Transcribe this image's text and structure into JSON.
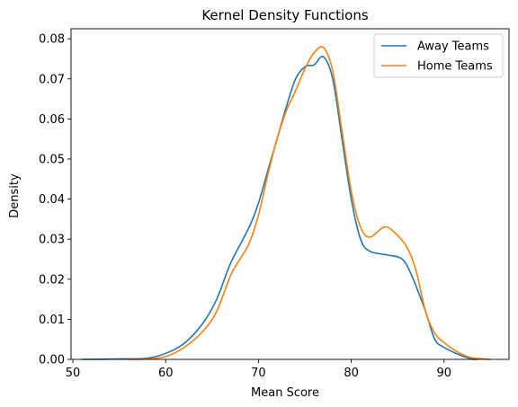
{
  "chart_data": {
    "type": "line",
    "title": "Kernel Density Functions",
    "xlabel": "Mean Score",
    "ylabel": "Density",
    "xlim": [
      49.8,
      97.0
    ],
    "ylim": [
      0,
      0.0825
    ],
    "xticks": [
      {
        "value": 50,
        "label": "50"
      },
      {
        "value": 60,
        "label": "60"
      },
      {
        "value": 70,
        "label": "70"
      },
      {
        "value": 80,
        "label": "80"
      },
      {
        "value": 90,
        "label": "90"
      }
    ],
    "yticks": [
      {
        "value": 0.0,
        "label": "0.00"
      },
      {
        "value": 0.01,
        "label": "0.01"
      },
      {
        "value": 0.02,
        "label": "0.02"
      },
      {
        "value": 0.03,
        "label": "0.03"
      },
      {
        "value": 0.04,
        "label": "0.04"
      },
      {
        "value": 0.05,
        "label": "0.05"
      },
      {
        "value": 0.06,
        "label": "0.06"
      },
      {
        "value": 0.07,
        "label": "0.07"
      },
      {
        "value": 0.08,
        "label": "0.08"
      }
    ],
    "grid": false,
    "legend_position": "top-right",
    "series": [
      {
        "name": "Away Teams",
        "color": "#1f77b4",
        "points": [
          [
            51.0,
            0.0
          ],
          [
            55.0,
            0.0001
          ],
          [
            58.0,
            0.0003
          ],
          [
            60.0,
            0.0015
          ],
          [
            62.0,
            0.004
          ],
          [
            64.0,
            0.009
          ],
          [
            65.5,
            0.015
          ],
          [
            67.0,
            0.024
          ],
          [
            69.0,
            0.033
          ],
          [
            70.0,
            0.039
          ],
          [
            71.0,
            0.047
          ],
          [
            72.0,
            0.055
          ],
          [
            73.0,
            0.063
          ],
          [
            74.0,
            0.07
          ],
          [
            75.0,
            0.073
          ],
          [
            76.0,
            0.0735
          ],
          [
            77.0,
            0.0755
          ],
          [
            78.0,
            0.07
          ],
          [
            79.0,
            0.055
          ],
          [
            80.0,
            0.04
          ],
          [
            81.0,
            0.03
          ],
          [
            82.0,
            0.027
          ],
          [
            84.0,
            0.026
          ],
          [
            85.5,
            0.025
          ],
          [
            86.5,
            0.021
          ],
          [
            88.0,
            0.012
          ],
          [
            89.0,
            0.005
          ],
          [
            90.0,
            0.003
          ],
          [
            91.0,
            0.0018
          ],
          [
            92.0,
            0.0008
          ],
          [
            93.0,
            0.0001
          ],
          [
            93.5,
            0.0
          ]
        ]
      },
      {
        "name": "Home Teams",
        "color": "#ff7f0e",
        "points": [
          [
            56.0,
            0.0
          ],
          [
            58.0,
            0.0001
          ],
          [
            60.0,
            0.0007
          ],
          [
            62.0,
            0.003
          ],
          [
            64.0,
            0.007
          ],
          [
            65.5,
            0.012
          ],
          [
            67.0,
            0.021
          ],
          [
            68.0,
            0.025
          ],
          [
            69.0,
            0.029
          ],
          [
            70.0,
            0.036
          ],
          [
            71.0,
            0.046
          ],
          [
            72.0,
            0.055
          ],
          [
            73.0,
            0.062
          ],
          [
            74.0,
            0.067
          ],
          [
            75.0,
            0.0725
          ],
          [
            76.0,
            0.0765
          ],
          [
            77.0,
            0.0778
          ],
          [
            78.0,
            0.072
          ],
          [
            79.0,
            0.057
          ],
          [
            80.0,
            0.042
          ],
          [
            81.0,
            0.033
          ],
          [
            82.0,
            0.0305
          ],
          [
            83.5,
            0.033
          ],
          [
            84.5,
            0.032
          ],
          [
            86.0,
            0.028
          ],
          [
            87.0,
            0.022
          ],
          [
            88.0,
            0.012
          ],
          [
            89.0,
            0.0065
          ],
          [
            90.0,
            0.0042
          ],
          [
            91.0,
            0.0025
          ],
          [
            92.0,
            0.0012
          ],
          [
            93.0,
            0.0004
          ],
          [
            95.0,
            0.0
          ]
        ]
      }
    ]
  }
}
